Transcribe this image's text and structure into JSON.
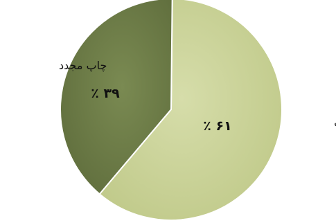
{
  "chart_data": {
    "type": "pie",
    "categories": [
      "چاپ اول",
      "چاپ مجدد"
    ],
    "values": [
      61,
      39
    ],
    "data_labels": [
      "٪ ۶۱",
      "٪ ۳۹"
    ],
    "colors": [
      "#c7d08f",
      "#6b7a45"
    ],
    "legend": "none",
    "start_angle": "12 o'clock",
    "direction": "clockwise"
  }
}
